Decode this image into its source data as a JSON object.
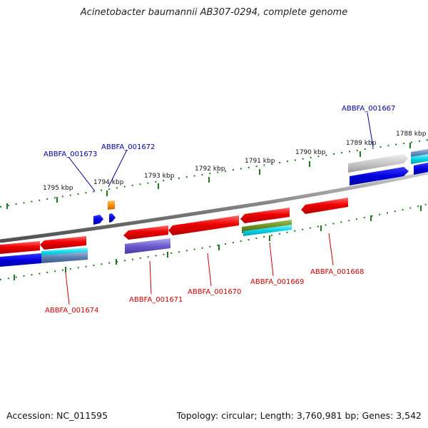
{
  "title": "Acinetobacter baumannii AB307-0294, complete genome",
  "footer": {
    "accession": "Accession: NC_011595",
    "topology": "Topology: circular; Length: 3,760,981 bp; Genes: 3,542"
  },
  "colors": {
    "backbone": "#7a7a7a",
    "tick": "#1e7a1e",
    "label_top": "#0000a0",
    "label_bottom": "#cc0000"
  },
  "ticks": [
    "1795 kbp",
    "1794 kbp",
    "1793 kbp",
    "1792 kbp",
    "1791 kbp",
    "1790 kbp",
    "1789 kbp",
    "1788 kbp"
  ],
  "gene_labels_top": [
    "ABBFA_001673",
    "ABBFA_001672",
    "ABBFA_001667"
  ],
  "gene_labels_bottom": [
    "ABBFA_001674",
    "ABBFA_001671",
    "ABBFA_001670",
    "ABBFA_001669",
    "ABBFA_001668"
  ]
}
